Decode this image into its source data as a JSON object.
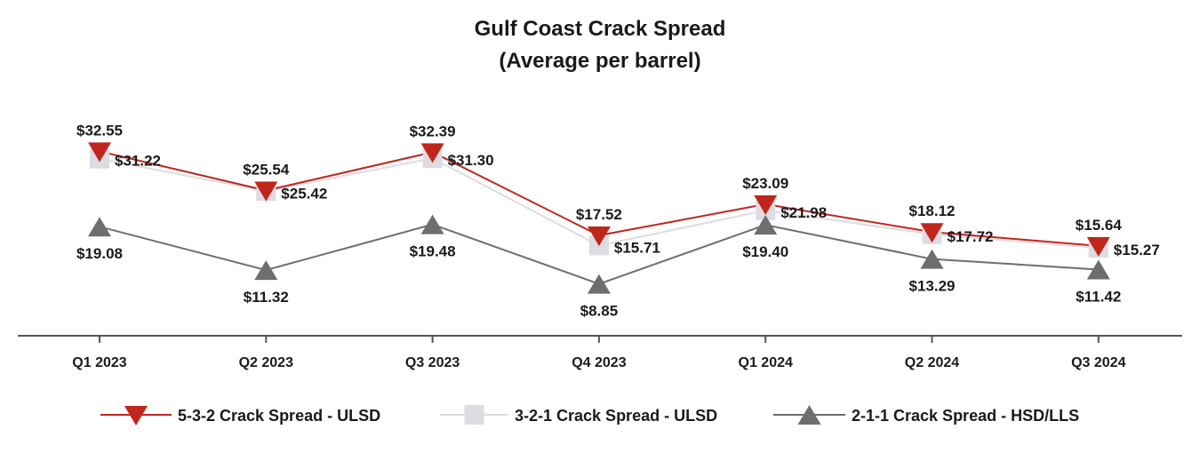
{
  "chart_data": {
    "type": "line",
    "title": "Gulf Coast Crack Spread",
    "subtitle": "(Average per barrel)",
    "categories": [
      "Q1 2023",
      "Q2 2023",
      "Q3 2023",
      "Q4 2023",
      "Q1 2024",
      "Q2 2024",
      "Q3 2024"
    ],
    "series": [
      {
        "name": "5-3-2 Crack Spread - ULSD",
        "values": [
          32.55,
          25.54,
          32.39,
          17.52,
          23.09,
          18.12,
          15.64
        ],
        "labels": [
          "$32.55",
          "$25.54",
          "$32.39",
          "$17.52",
          "$23.09",
          "$18.12",
          "$15.64"
        ],
        "color": "#c0261c",
        "marker": "triangle-down"
      },
      {
        "name": "3-2-1 Crack Spread - ULSD",
        "values": [
          31.22,
          25.42,
          31.3,
          15.71,
          21.98,
          17.72,
          15.27
        ],
        "labels": [
          "$31.22",
          "$25.42",
          "$31.30",
          "$15.71",
          "$21.98",
          "$17.72",
          "$15.27"
        ],
        "color": "#dcdce2",
        "marker": "square"
      },
      {
        "name": "2-1-1 Crack Spread - HSD/LLS",
        "values": [
          19.08,
          11.32,
          19.48,
          8.85,
          19.4,
          13.29,
          11.42
        ],
        "labels": [
          "$19.08",
          "$11.32",
          "$19.48",
          "$8.85",
          "$19.40",
          "$13.29",
          "$11.42"
        ],
        "color": "#6e6e6e",
        "marker": "triangle-up"
      }
    ],
    "xlabel": "",
    "ylabel": "",
    "grid": false,
    "legend": "bottom"
  }
}
